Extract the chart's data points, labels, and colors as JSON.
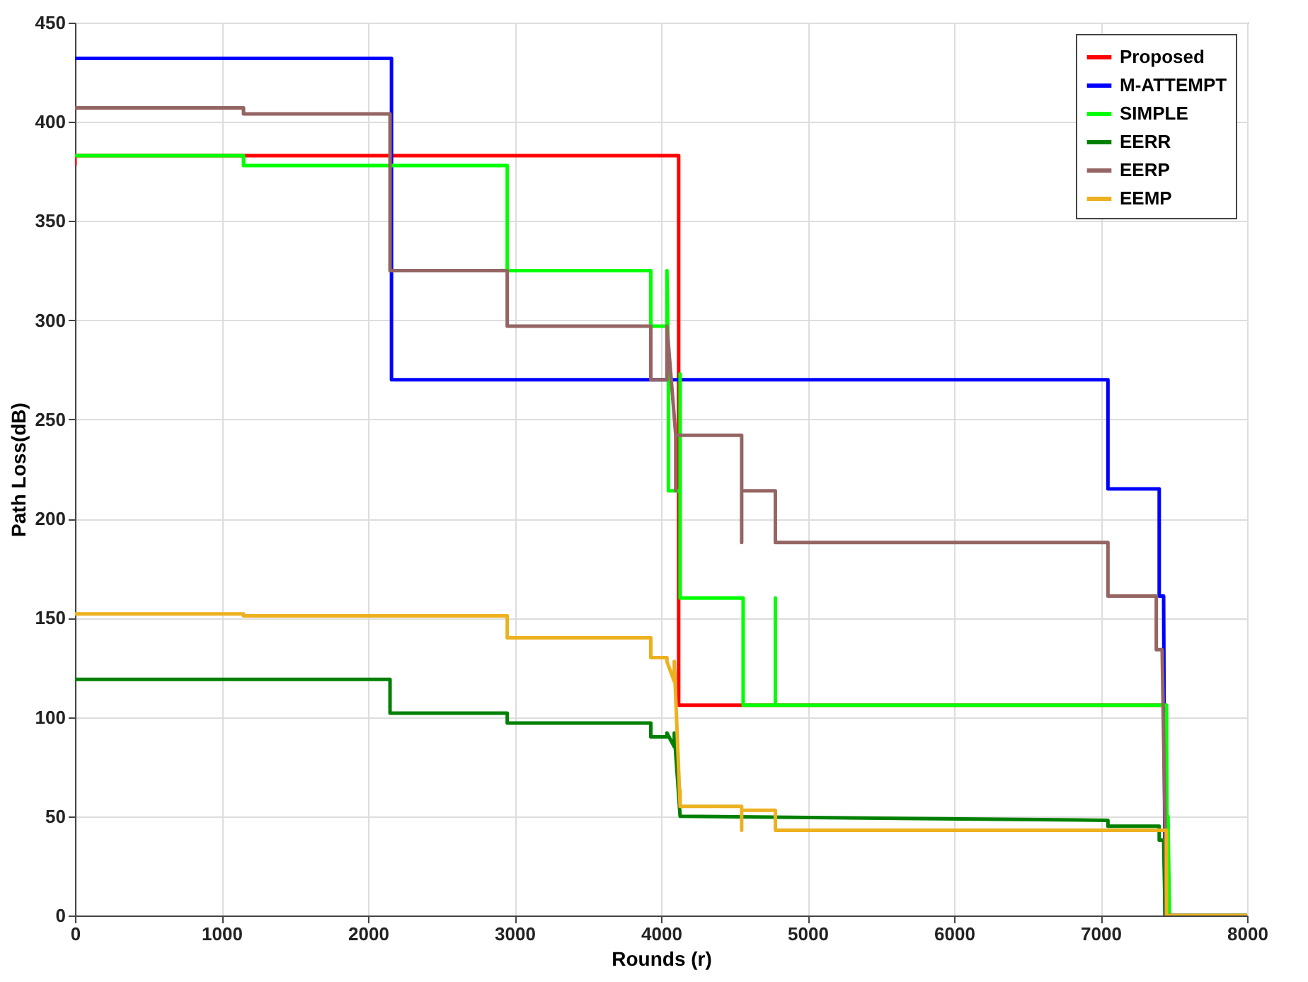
{
  "chart_data": {
    "type": "line",
    "xlabel": "Rounds (r)",
    "ylabel": "Path Loss(dB)",
    "xlim": [
      0,
      8000
    ],
    "ylim": [
      0,
      450
    ],
    "xticks": [
      0,
      1000,
      2000,
      3000,
      4000,
      5000,
      6000,
      7000,
      8000
    ],
    "yticks": [
      0,
      50,
      100,
      150,
      200,
      250,
      300,
      350,
      400,
      450
    ],
    "grid": true,
    "legend": "top right",
    "marker": "none",
    "line_style": "solid",
    "series": [
      {
        "name": "Proposed",
        "color": "#ff0000",
        "x": [
          0,
          0,
          4120,
          4120,
          4120,
          7450
        ],
        "values": [
          378,
          383,
          383,
          378,
          106,
          106
        ]
      },
      {
        "name": "M-ATTEMPT",
        "color": "#0000ff",
        "x": [
          0,
          2160,
          2160,
          7050,
          7050,
          7400,
          7400,
          7430,
          7440,
          8000
        ],
        "values": [
          432,
          432,
          270,
          270,
          215,
          215,
          161,
          161,
          0,
          0
        ]
      },
      {
        "name": "SIMPLE",
        "color": "#00ff00",
        "x": [
          0,
          1150,
          1150,
          2950,
          2950,
          3930,
          3930,
          4040,
          4040,
          4050,
          4050,
          4130,
          4130,
          4130,
          4560,
          4560,
          4780,
          4780,
          4780,
          7450,
          7455,
          7460,
          7470,
          8000
        ],
        "values": [
          383,
          383,
          378,
          378,
          325,
          325,
          297,
          297,
          325,
          273,
          214,
          214,
          273,
          160,
          160,
          106,
          106,
          160,
          106,
          106,
          0,
          50,
          0,
          0
        ]
      },
      {
        "name": "EERR",
        "color": "#008000",
        "x": [
          0,
          2150,
          2150,
          2950,
          2950,
          3930,
          3930,
          4040,
          4040,
          4090,
          4090,
          4130,
          4130,
          7050,
          7050,
          7400,
          7400,
          7430,
          7440,
          8000
        ],
        "values": [
          119,
          119,
          102,
          102,
          97,
          97,
          90,
          90,
          92,
          85,
          92,
          50,
          50,
          48,
          45,
          45,
          38,
          38,
          0,
          0
        ]
      },
      {
        "name": "EERP",
        "color": "#956563",
        "x": [
          0,
          1150,
          1150,
          2150,
          2150,
          2950,
          2950,
          3930,
          3930,
          4040,
          4040,
          4100,
          4100,
          4100,
          4550,
          4550,
          4550,
          4780,
          4780,
          7050,
          7050,
          7380,
          7380,
          7420,
          7450,
          8000
        ],
        "values": [
          407,
          407,
          404,
          404,
          325,
          325,
          297,
          297,
          270,
          270,
          297,
          242,
          214,
          242,
          242,
          188,
          214,
          214,
          188,
          188,
          161,
          161,
          134,
          134,
          0,
          0
        ]
      },
      {
        "name": "EEMP",
        "color": "#edb120",
        "x": [
          0,
          1150,
          1150,
          2950,
          2950,
          3930,
          3930,
          4040,
          4040,
          4090,
          4090,
          4130,
          4130,
          4130,
          4550,
          4550,
          4550,
          4780,
          4780,
          7450,
          7450,
          8000
        ],
        "values": [
          152,
          152,
          151,
          151,
          140,
          140,
          130,
          130,
          128,
          118,
          128,
          55,
          63,
          55,
          55,
          43,
          53,
          53,
          43,
          43,
          0,
          0
        ]
      }
    ]
  }
}
